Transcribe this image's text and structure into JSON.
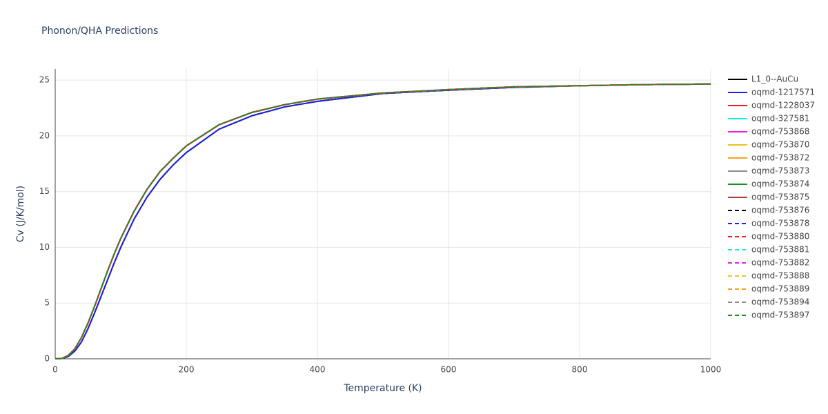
{
  "chart_data": {
    "type": "line",
    "title": "Phonon/QHA Predictions",
    "x_label": "Temperature (K)",
    "y_label": "Cv (J/K/mol)",
    "xlim": [
      0,
      1000
    ],
    "ylim": [
      0,
      26
    ],
    "xticks": [
      0,
      200,
      400,
      600,
      800,
      1000
    ],
    "yticks": [
      0,
      5,
      10,
      15,
      20,
      25
    ],
    "grid": true,
    "legend": "right",
    "x": [
      0,
      10,
      20,
      30,
      40,
      50,
      60,
      70,
      80,
      90,
      100,
      120,
      140,
      160,
      180,
      200,
      250,
      300,
      350,
      400,
      500,
      600,
      700,
      800,
      900,
      1000
    ],
    "series": [
      {
        "name": "L1_0--AuCu",
        "color": "#000000",
        "dash": "solid",
        "values": [
          0,
          0.02,
          0.2,
          0.7,
          1.5,
          2.7,
          4.1,
          5.6,
          7.1,
          8.6,
          10.0,
          12.5,
          14.5,
          16.1,
          17.4,
          18.5,
          20.6,
          21.8,
          22.6,
          23.1,
          23.8,
          24.1,
          24.35,
          24.5,
          24.6,
          24.65
        ]
      },
      {
        "name": "oqmd-1217571",
        "color": "#1f1fe6",
        "dash": "solid",
        "values": [
          0,
          0.02,
          0.2,
          0.7,
          1.5,
          2.7,
          4.1,
          5.6,
          7.1,
          8.6,
          10.0,
          12.5,
          14.5,
          16.1,
          17.4,
          18.5,
          20.6,
          21.8,
          22.6,
          23.1,
          23.8,
          24.1,
          24.35,
          24.5,
          24.6,
          24.65
        ]
      },
      {
        "name": "oqmd-1228037",
        "color": "#e61f1f",
        "dash": "solid",
        "values": [
          0,
          0.03,
          0.3,
          0.9,
          1.9,
          3.2,
          4.7,
          6.3,
          7.9,
          9.4,
          10.8,
          13.2,
          15.2,
          16.8,
          18.0,
          19.1,
          21.0,
          22.1,
          22.8,
          23.3,
          23.85,
          24.15,
          24.4,
          24.5,
          24.6,
          24.65
        ]
      },
      {
        "name": "oqmd-327581",
        "color": "#1fe6e6",
        "dash": "solid",
        "values": [
          0,
          0.03,
          0.3,
          0.9,
          1.9,
          3.2,
          4.7,
          6.3,
          7.9,
          9.4,
          10.8,
          13.2,
          15.2,
          16.8,
          18.0,
          19.1,
          21.0,
          22.1,
          22.8,
          23.3,
          23.85,
          24.15,
          24.4,
          24.5,
          24.6,
          24.65
        ]
      },
      {
        "name": "oqmd-753868",
        "color": "#e61fe6",
        "dash": "solid",
        "values": [
          0,
          0.03,
          0.3,
          0.9,
          1.9,
          3.2,
          4.7,
          6.3,
          7.9,
          9.4,
          10.8,
          13.2,
          15.2,
          16.8,
          18.0,
          19.1,
          21.0,
          22.1,
          22.8,
          23.3,
          23.85,
          24.15,
          24.4,
          24.5,
          24.6,
          24.65
        ]
      },
      {
        "name": "oqmd-753870",
        "color": "#f0c020",
        "dash": "solid",
        "values": [
          0,
          0.03,
          0.3,
          0.9,
          1.9,
          3.2,
          4.7,
          6.3,
          7.9,
          9.4,
          10.8,
          13.2,
          15.2,
          16.8,
          18.0,
          19.1,
          21.0,
          22.1,
          22.8,
          23.3,
          23.85,
          24.15,
          24.4,
          24.5,
          24.6,
          24.65
        ]
      },
      {
        "name": "oqmd-753872",
        "color": "#f5a21f",
        "dash": "solid",
        "values": [
          0,
          0.03,
          0.3,
          0.9,
          1.9,
          3.2,
          4.7,
          6.3,
          7.9,
          9.4,
          10.8,
          13.2,
          15.2,
          16.8,
          18.0,
          19.1,
          21.0,
          22.1,
          22.8,
          23.3,
          23.85,
          24.15,
          24.4,
          24.5,
          24.6,
          24.65
        ]
      },
      {
        "name": "oqmd-753873",
        "color": "#8c8c8c",
        "dash": "solid",
        "values": [
          0,
          0.03,
          0.3,
          0.9,
          1.9,
          3.2,
          4.7,
          6.3,
          7.9,
          9.4,
          10.8,
          13.2,
          15.2,
          16.8,
          18.0,
          19.1,
          21.0,
          22.1,
          22.8,
          23.3,
          23.85,
          24.15,
          24.4,
          24.5,
          24.6,
          24.65
        ]
      },
      {
        "name": "oqmd-753874",
        "color": "#1f8c1f",
        "dash": "solid",
        "values": [
          0,
          0.03,
          0.3,
          0.9,
          1.9,
          3.2,
          4.7,
          6.3,
          7.9,
          9.4,
          10.8,
          13.2,
          15.2,
          16.8,
          18.0,
          19.1,
          21.0,
          22.1,
          22.8,
          23.3,
          23.85,
          24.15,
          24.4,
          24.5,
          24.6,
          24.65
        ]
      },
      {
        "name": "oqmd-753875",
        "color": "#b03a3a",
        "dash": "solid",
        "values": [
          0,
          0.03,
          0.3,
          0.9,
          1.9,
          3.2,
          4.7,
          6.3,
          7.9,
          9.4,
          10.8,
          13.2,
          15.2,
          16.8,
          18.0,
          19.1,
          21.0,
          22.1,
          22.8,
          23.3,
          23.85,
          24.15,
          24.4,
          24.5,
          24.6,
          24.65
        ]
      },
      {
        "name": "oqmd-753876",
        "color": "#000000",
        "dash": "dash",
        "values": [
          0,
          0.03,
          0.3,
          0.9,
          1.9,
          3.2,
          4.7,
          6.3,
          7.9,
          9.4,
          10.8,
          13.2,
          15.2,
          16.8,
          18.0,
          19.1,
          21.0,
          22.1,
          22.8,
          23.3,
          23.85,
          24.15,
          24.4,
          24.5,
          24.6,
          24.65
        ]
      },
      {
        "name": "oqmd-753878",
        "color": "#1f1fe6",
        "dash": "dash",
        "values": [
          0,
          0.03,
          0.3,
          0.9,
          1.9,
          3.2,
          4.7,
          6.3,
          7.9,
          9.4,
          10.8,
          13.2,
          15.2,
          16.8,
          18.0,
          19.1,
          21.0,
          22.1,
          22.8,
          23.3,
          23.85,
          24.15,
          24.4,
          24.5,
          24.6,
          24.65
        ]
      },
      {
        "name": "oqmd-753880",
        "color": "#e61f1f",
        "dash": "dash",
        "values": [
          0,
          0.03,
          0.3,
          0.9,
          1.9,
          3.2,
          4.7,
          6.3,
          7.9,
          9.4,
          10.8,
          13.2,
          15.2,
          16.8,
          18.0,
          19.1,
          21.0,
          22.1,
          22.8,
          23.3,
          23.85,
          24.15,
          24.4,
          24.5,
          24.6,
          24.65
        ]
      },
      {
        "name": "oqmd-753881",
        "color": "#1fe6e6",
        "dash": "dash",
        "values": [
          0,
          0.03,
          0.3,
          0.9,
          1.9,
          3.2,
          4.7,
          6.3,
          7.9,
          9.4,
          10.8,
          13.2,
          15.2,
          16.8,
          18.0,
          19.1,
          21.0,
          22.1,
          22.8,
          23.3,
          23.85,
          24.15,
          24.4,
          24.5,
          24.6,
          24.65
        ]
      },
      {
        "name": "oqmd-753882",
        "color": "#e61fe6",
        "dash": "dash",
        "values": [
          0,
          0.03,
          0.3,
          0.9,
          1.9,
          3.2,
          4.7,
          6.3,
          7.9,
          9.4,
          10.8,
          13.2,
          15.2,
          16.8,
          18.0,
          19.1,
          21.0,
          22.1,
          22.8,
          23.3,
          23.85,
          24.15,
          24.4,
          24.5,
          24.6,
          24.65
        ]
      },
      {
        "name": "oqmd-753888",
        "color": "#f0c020",
        "dash": "dash",
        "values": [
          0,
          0.03,
          0.3,
          0.9,
          1.9,
          3.2,
          4.7,
          6.3,
          7.9,
          9.4,
          10.8,
          13.2,
          15.2,
          16.8,
          18.0,
          19.1,
          21.0,
          22.1,
          22.8,
          23.3,
          23.85,
          24.15,
          24.4,
          24.5,
          24.6,
          24.65
        ]
      },
      {
        "name": "oqmd-753889",
        "color": "#f5a21f",
        "dash": "dash",
        "values": [
          0,
          0.03,
          0.3,
          0.9,
          1.9,
          3.2,
          4.7,
          6.3,
          7.9,
          9.4,
          10.8,
          13.2,
          15.2,
          16.8,
          18.0,
          19.1,
          21.0,
          22.1,
          22.8,
          23.3,
          23.85,
          24.15,
          24.4,
          24.5,
          24.6,
          24.65
        ]
      },
      {
        "name": "oqmd-753894",
        "color": "#8c8c8c",
        "dash": "dash",
        "values": [
          0,
          0.03,
          0.3,
          0.9,
          1.9,
          3.2,
          4.7,
          6.3,
          7.9,
          9.4,
          10.8,
          13.2,
          15.2,
          16.8,
          18.0,
          19.1,
          21.0,
          22.1,
          22.8,
          23.3,
          23.85,
          24.15,
          24.4,
          24.5,
          24.6,
          24.65
        ]
      },
      {
        "name": "oqmd-753897",
        "color": "#1f8c1f",
        "dash": "dash",
        "values": [
          0,
          0.03,
          0.3,
          0.9,
          1.9,
          3.2,
          4.7,
          6.3,
          7.9,
          9.4,
          10.8,
          13.2,
          15.2,
          16.8,
          18.0,
          19.1,
          21.0,
          22.1,
          22.8,
          23.3,
          23.85,
          24.15,
          24.4,
          24.5,
          24.6,
          24.65
        ]
      }
    ]
  }
}
